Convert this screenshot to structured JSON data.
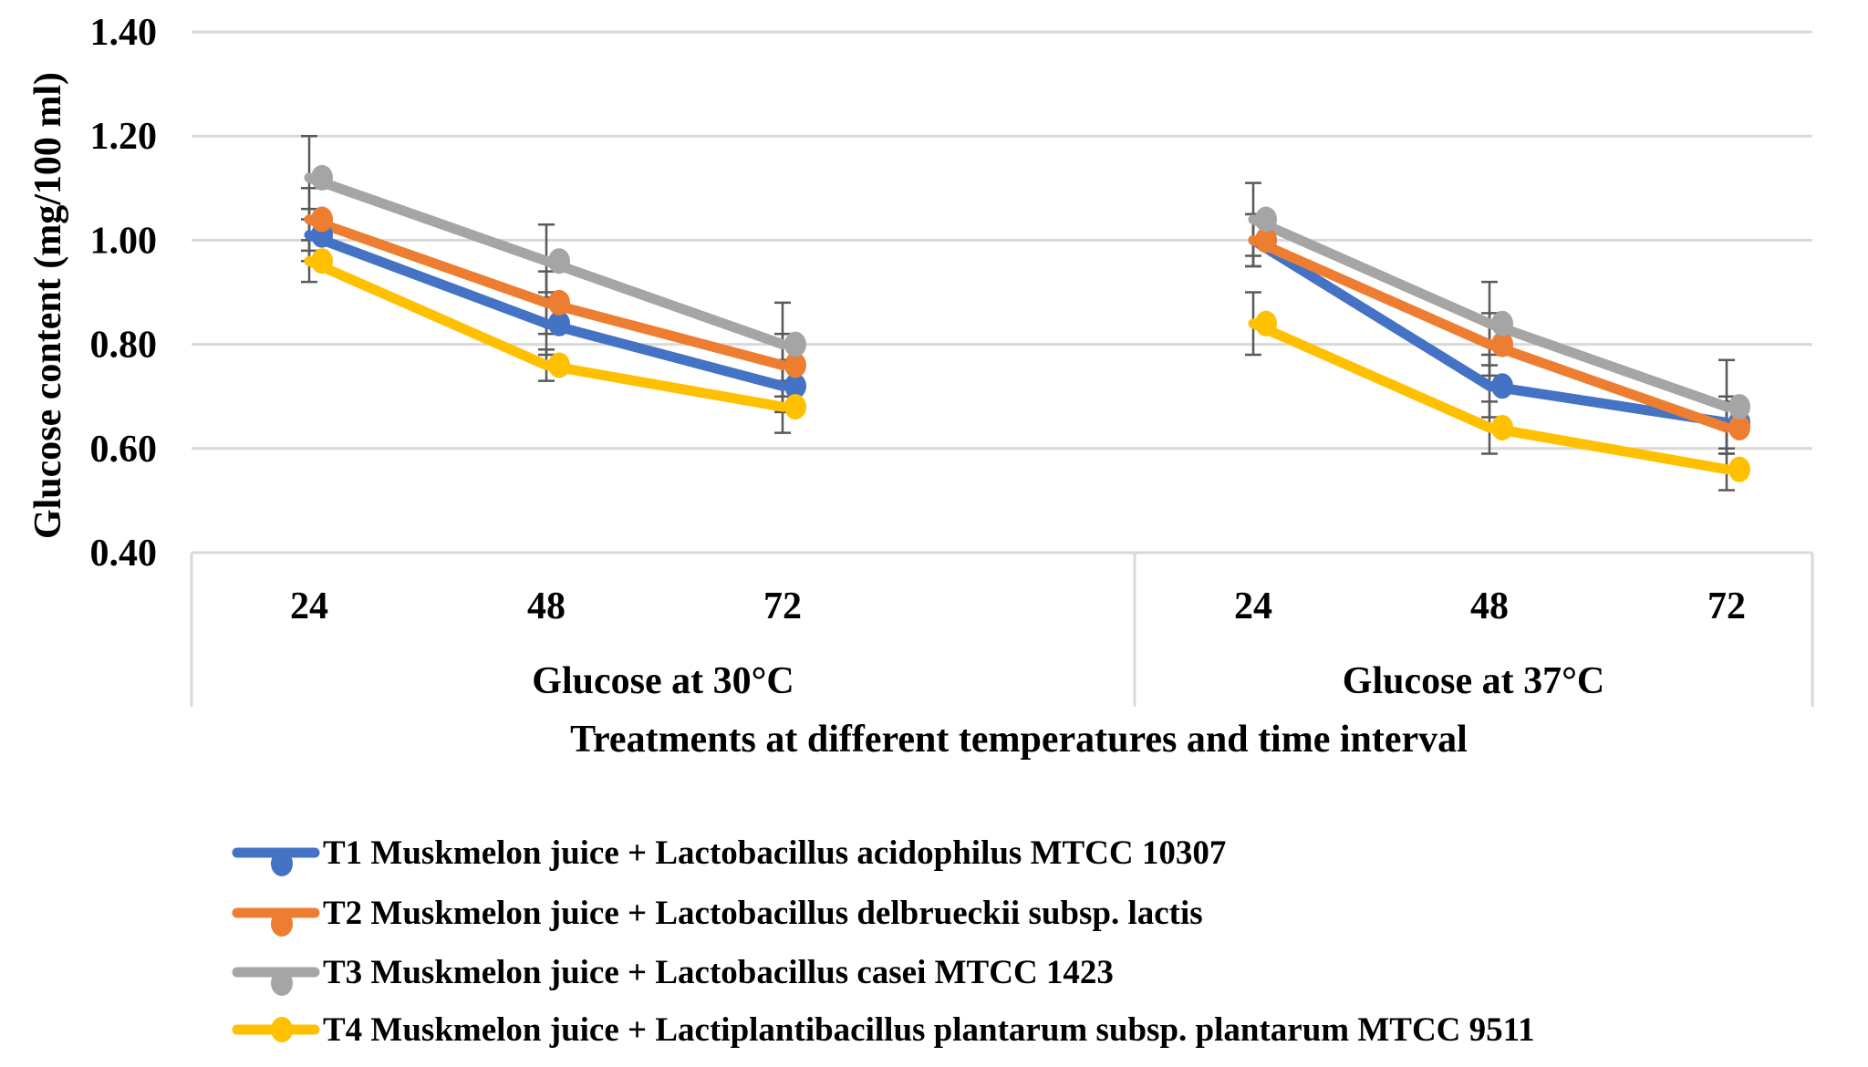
{
  "chart_data": {
    "type": "line",
    "xlabel": "Treatments at different temperatures and time interval",
    "ylabel": "Glucose content (mg/100 ml)",
    "ylim": [
      0.4,
      1.4
    ],
    "yticks": [
      "0.40",
      "0.60",
      "0.80",
      "1.00",
      "1.20",
      "1.40"
    ],
    "grid": true,
    "legend_position": "bottom",
    "groups": [
      {
        "label": "Glucose at 30°C",
        "categories": [
          "24",
          "48",
          "72"
        ]
      },
      {
        "label": "Glucose at 37°C",
        "categories": [
          "24",
          "48",
          "72"
        ]
      }
    ],
    "series": [
      {
        "name": "T1 Muskmelon juice + Lactobacillus acidophilus MTCC 10307",
        "color": "#4472C4",
        "values": [
          1.01,
          0.84,
          0.72,
          1.0,
          0.72,
          0.65
        ],
        "errors": [
          0.05,
          0.06,
          0.05,
          0.05,
          0.06,
          0.05
        ]
      },
      {
        "name": "T2 Muskmelon juice + Lactobacillus delbrueckii subsp. lactis",
        "color": "#ED7D31",
        "values": [
          1.04,
          0.88,
          0.76,
          1.0,
          0.8,
          0.64
        ],
        "errors": [
          0.06,
          0.06,
          0.06,
          0.05,
          0.06,
          0.05
        ]
      },
      {
        "name": "T3 Muskmelon juice + Lactobacillus casei MTCC 1423",
        "color": "#A5A5A5",
        "values": [
          1.12,
          0.96,
          0.8,
          1.04,
          0.84,
          0.68
        ],
        "errors": [
          0.08,
          0.07,
          0.08,
          0.07,
          0.08,
          0.09
        ]
      },
      {
        "name": "T4 Muskmelon juice + Lactiplantibacillus plantarum subsp. plantarum MTCC 9511",
        "color": "#FFC000",
        "values": [
          0.96,
          0.76,
          0.68,
          0.84,
          0.64,
          0.56
        ],
        "errors": [
          0.04,
          0.03,
          0.05,
          0.06,
          0.05,
          0.04
        ]
      }
    ]
  }
}
